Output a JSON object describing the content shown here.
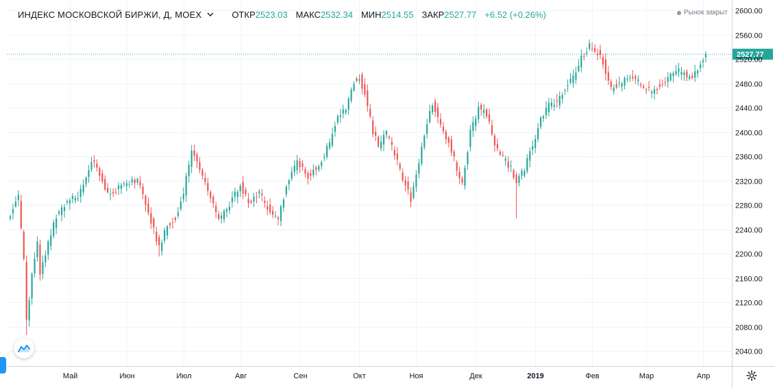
{
  "header": {
    "symbol": "ИНДЕКС МОСКОВСКОЙ БИРЖИ, Д, MOEX",
    "open_label": "ОТКР",
    "open_value": "2523.03",
    "high_label": "МАКС",
    "high_value": "2532.34",
    "low_label": "МИН",
    "low_value": "2514.55",
    "close_label": "ЗАКР",
    "close_value": "2527.77",
    "change": "+6.52 (+0.26%)"
  },
  "market_status": "Рынок закрыт",
  "colors": {
    "up": "#26a69a",
    "down": "#ef5350",
    "grid": "#f0f3fa",
    "last_line": "#26a69a",
    "axis_text": "#131722"
  },
  "chart_data": {
    "type": "candlestick",
    "title": "",
    "y_axis": {
      "min": 2020,
      "max": 2610,
      "ticks": [
        2040,
        2080,
        2120,
        2160,
        2200,
        2240,
        2280,
        2320,
        2360,
        2400,
        2440,
        2480,
        2520,
        2560,
        2600
      ]
    },
    "x_axis": {
      "labels": [
        "Май",
        "Июн",
        "Июл",
        "Авг",
        "Сен",
        "Окт",
        "Ноя",
        "Дек",
        "2019",
        "Фев",
        "Мар",
        "Апр"
      ],
      "label_days": [
        22,
        43,
        64,
        85,
        107,
        129,
        150,
        172,
        194,
        215,
        235,
        256
      ]
    },
    "last_price": 2527.77,
    "last_price_label": "2527.77",
    "day_span": 260,
    "keypoints": [
      [
        0,
        2262
      ],
      [
        3,
        2292
      ],
      [
        5,
        2188
      ],
      [
        6,
        2088
      ],
      [
        8,
        2162
      ],
      [
        10,
        2218
      ],
      [
        11,
        2165
      ],
      [
        13,
        2200
      ],
      [
        17,
        2262
      ],
      [
        21,
        2285
      ],
      [
        25,
        2295
      ],
      [
        28,
        2322
      ],
      [
        30,
        2355
      ],
      [
        33,
        2332
      ],
      [
        36,
        2298
      ],
      [
        40,
        2308
      ],
      [
        44,
        2318
      ],
      [
        47,
        2322
      ],
      [
        50,
        2280
      ],
      [
        53,
        2238
      ],
      [
        55,
        2210
      ],
      [
        58,
        2248
      ],
      [
        61,
        2258
      ],
      [
        64,
        2300
      ],
      [
        67,
        2370
      ],
      [
        70,
        2342
      ],
      [
        74,
        2292
      ],
      [
        77,
        2255
      ],
      [
        81,
        2282
      ],
      [
        85,
        2312
      ],
      [
        88,
        2285
      ],
      [
        92,
        2300
      ],
      [
        96,
        2268
      ],
      [
        99,
        2255
      ],
      [
        102,
        2312
      ],
      [
        106,
        2352
      ],
      [
        110,
        2328
      ],
      [
        114,
        2345
      ],
      [
        118,
        2382
      ],
      [
        121,
        2425
      ],
      [
        124,
        2440
      ],
      [
        127,
        2482
      ],
      [
        129,
        2490
      ],
      [
        131,
        2462
      ],
      [
        134,
        2400
      ],
      [
        136,
        2378
      ],
      [
        139,
        2398
      ],
      [
        142,
        2362
      ],
      [
        145,
        2325
      ],
      [
        148,
        2290
      ],
      [
        150,
        2328
      ],
      [
        153,
        2395
      ],
      [
        156,
        2448
      ],
      [
        159,
        2408
      ],
      [
        162,
        2385
      ],
      [
        165,
        2340
      ],
      [
        167,
        2312
      ],
      [
        170,
        2400
      ],
      [
        173,
        2440
      ],
      [
        176,
        2428
      ],
      [
        179,
        2380
      ],
      [
        182,
        2358
      ],
      [
        185,
        2340
      ],
      [
        187,
        2318
      ],
      [
        190,
        2340
      ],
      [
        193,
        2378
      ],
      [
        196,
        2420
      ],
      [
        199,
        2445
      ],
      [
        202,
        2448
      ],
      [
        205,
        2472
      ],
      [
        208,
        2490
      ],
      [
        211,
        2522
      ],
      [
        214,
        2542
      ],
      [
        216,
        2530
      ],
      [
        218,
        2528
      ],
      [
        220,
        2500
      ],
      [
        222,
        2472
      ],
      [
        225,
        2478
      ],
      [
        228,
        2490
      ],
      [
        231,
        2488
      ],
      [
        234,
        2472
      ],
      [
        237,
        2468
      ],
      [
        240,
        2475
      ],
      [
        243,
        2488
      ],
      [
        246,
        2502
      ],
      [
        249,
        2495
      ],
      [
        252,
        2488
      ],
      [
        254,
        2505
      ],
      [
        256,
        2522
      ],
      [
        257,
        2527.77
      ]
    ]
  }
}
